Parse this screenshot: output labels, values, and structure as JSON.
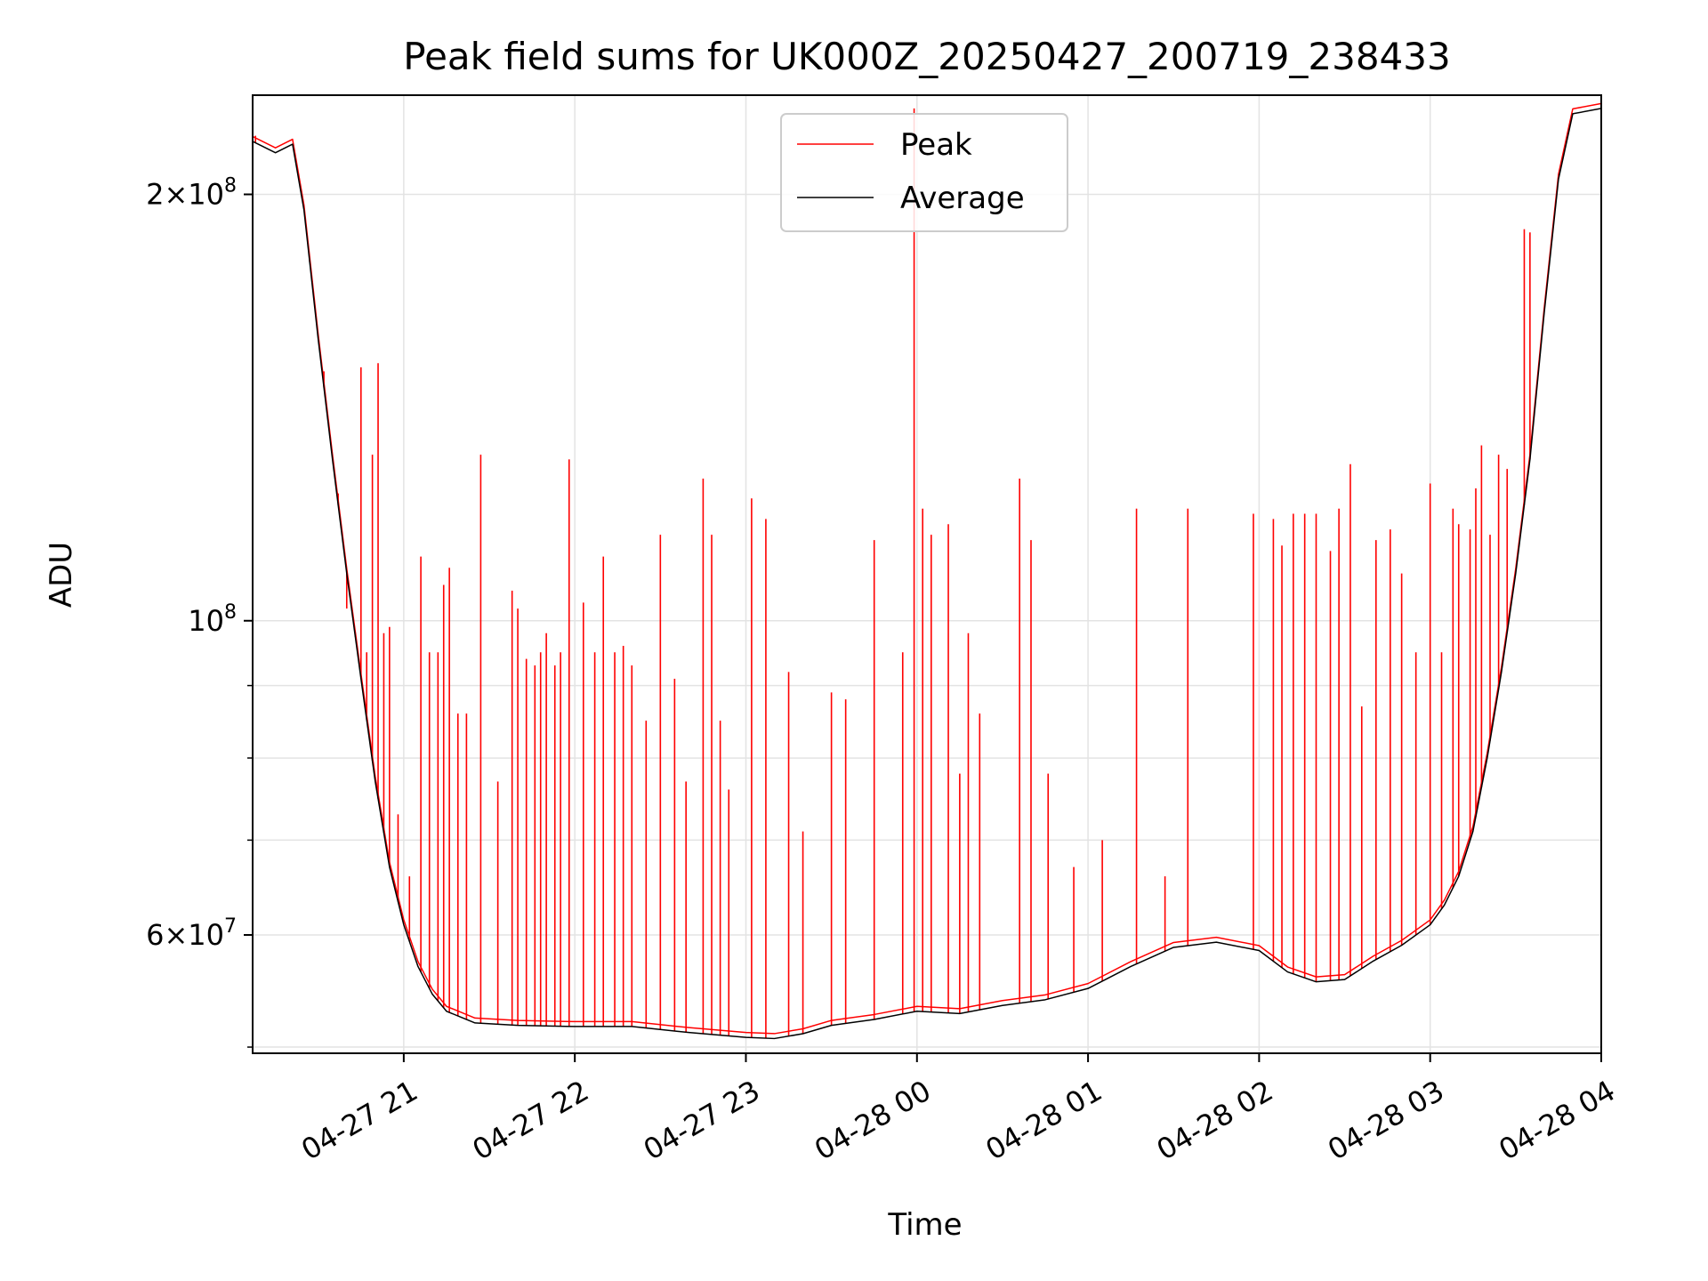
{
  "chart_data": {
    "type": "line",
    "title": "Peak field sums for UK000Z_20250427_200719_238433",
    "xlabel": "Time",
    "ylabel": "ADU",
    "y_scale": "log",
    "grid": true,
    "legend_position": "top-center",
    "x_range": [
      "2025-04-27 20:07",
      "2025-04-28 04:00"
    ],
    "ylim": [
      49500000,
      235000000
    ],
    "x_tick_labels": [
      "04-27 21",
      "04-27 22",
      "04-27 23",
      "04-28 00",
      "04-28 01",
      "04-28 02",
      "04-28 03",
      "04-28 04"
    ],
    "x_tick_times": [
      "2025-04-27 21:00",
      "2025-04-27 22:00",
      "2025-04-27 23:00",
      "2025-04-28 00:00",
      "2025-04-28 01:00",
      "2025-04-28 02:00",
      "2025-04-28 03:00",
      "2025-04-28 04:00"
    ],
    "y_major_ticks": [
      {
        "value": 60000000,
        "mantissa": "6",
        "exponent": "7"
      },
      {
        "value": 100000000,
        "mantissa": "",
        "exponent": "8"
      },
      {
        "value": 200000000,
        "mantissa": "2",
        "exponent": "8"
      }
    ],
    "y_minor_ticks": [
      50000000,
      70000000,
      80000000,
      90000000
    ],
    "series": [
      {
        "name": "Average",
        "color": "#000000",
        "points": [
          [
            "2025-04-27 20:07",
            218000000
          ],
          [
            "2025-04-27 20:15",
            214000000
          ],
          [
            "2025-04-27 20:21",
            217000000
          ],
          [
            "2025-04-27 20:25",
            195000000
          ],
          [
            "2025-04-27 20:30",
            158000000
          ],
          [
            "2025-04-27 20:35",
            130000000
          ],
          [
            "2025-04-27 20:40",
            108000000
          ],
          [
            "2025-04-27 20:45",
            91000000
          ],
          [
            "2025-04-27 20:50",
            77000000
          ],
          [
            "2025-04-27 20:55",
            67000000
          ],
          [
            "2025-04-27 21:00",
            61000000
          ],
          [
            "2025-04-27 21:05",
            57000000
          ],
          [
            "2025-04-27 21:10",
            54500000
          ],
          [
            "2025-04-27 21:15",
            53000000
          ],
          [
            "2025-04-27 21:25",
            52000000
          ],
          [
            "2025-04-27 21:40",
            51800000
          ],
          [
            "2025-04-27 22:00",
            51700000
          ],
          [
            "2025-04-27 22:20",
            51700000
          ],
          [
            "2025-04-27 22:40",
            51200000
          ],
          [
            "2025-04-27 23:00",
            50800000
          ],
          [
            "2025-04-27 23:10",
            50700000
          ],
          [
            "2025-04-27 23:20",
            51100000
          ],
          [
            "2025-04-27 23:30",
            51800000
          ],
          [
            "2025-04-27 23:45",
            52300000
          ],
          [
            "2025-04-28 00:00",
            53000000
          ],
          [
            "2025-04-28 00:15",
            52800000
          ],
          [
            "2025-04-28 00:30",
            53500000
          ],
          [
            "2025-04-28 00:45",
            54000000
          ],
          [
            "2025-04-28 01:00",
            55000000
          ],
          [
            "2025-04-28 01:15",
            57000000
          ],
          [
            "2025-04-28 01:30",
            58800000
          ],
          [
            "2025-04-28 01:45",
            59300000
          ],
          [
            "2025-04-28 02:00",
            58500000
          ],
          [
            "2025-04-28 02:10",
            56500000
          ],
          [
            "2025-04-28 02:20",
            55600000
          ],
          [
            "2025-04-28 02:30",
            55800000
          ],
          [
            "2025-04-28 02:40",
            57500000
          ],
          [
            "2025-04-28 02:50",
            59000000
          ],
          [
            "2025-04-28 03:00",
            61000000
          ],
          [
            "2025-04-28 03:05",
            63000000
          ],
          [
            "2025-04-28 03:10",
            66000000
          ],
          [
            "2025-04-28 03:15",
            71000000
          ],
          [
            "2025-04-28 03:20",
            80000000
          ],
          [
            "2025-04-28 03:25",
            92000000
          ],
          [
            "2025-04-28 03:30",
            108000000
          ],
          [
            "2025-04-28 03:35",
            130000000
          ],
          [
            "2025-04-28 03:40",
            165000000
          ],
          [
            "2025-04-28 03:45",
            205000000
          ],
          [
            "2025-04-28 03:50",
            228000000
          ],
          [
            "2025-04-28 04:00",
            230000000
          ]
        ]
      },
      {
        "name": "Peak",
        "color": "#ff0000",
        "spikes": [
          [
            "2025-04-27 20:08",
            220000000
          ],
          [
            "2025-04-27 20:27",
            180000000
          ],
          [
            "2025-04-27 20:32",
            150000000
          ],
          [
            "2025-04-27 20:37",
            123000000
          ],
          [
            "2025-04-27 20:40",
            102000000
          ],
          [
            "2025-04-27 20:43",
            98000000
          ],
          [
            "2025-04-27 20:45",
            151000000
          ],
          [
            "2025-04-27 20:47",
            95000000
          ],
          [
            "2025-04-27 20:49",
            131000000
          ],
          [
            "2025-04-27 20:51",
            152000000
          ],
          [
            "2025-04-27 20:53",
            98000000
          ],
          [
            "2025-04-27 20:55",
            99000000
          ],
          [
            "2025-04-27 20:58",
            73000000
          ],
          [
            "2025-04-27 21:02",
            66000000
          ],
          [
            "2025-04-27 21:06",
            111000000
          ],
          [
            "2025-04-27 21:09",
            95000000
          ],
          [
            "2025-04-27 21:12",
            95000000
          ],
          [
            "2025-04-27 21:14",
            106000000
          ],
          [
            "2025-04-27 21:16",
            109000000
          ],
          [
            "2025-04-27 21:19",
            86000000
          ],
          [
            "2025-04-27 21:22",
            86000000
          ],
          [
            "2025-04-27 21:27",
            131000000
          ],
          [
            "2025-04-27 21:33",
            77000000
          ],
          [
            "2025-04-27 21:38",
            105000000
          ],
          [
            "2025-04-27 21:40",
            102000000
          ],
          [
            "2025-04-27 21:43",
            94000000
          ],
          [
            "2025-04-27 21:46",
            93000000
          ],
          [
            "2025-04-27 21:48",
            95000000
          ],
          [
            "2025-04-27 21:50",
            98000000
          ],
          [
            "2025-04-27 21:53",
            93000000
          ],
          [
            "2025-04-27 21:55",
            95000000
          ],
          [
            "2025-04-27 21:58",
            130000000
          ],
          [
            "2025-04-27 22:03",
            103000000
          ],
          [
            "2025-04-27 22:07",
            95000000
          ],
          [
            "2025-04-27 22:10",
            111000000
          ],
          [
            "2025-04-27 22:14",
            95000000
          ],
          [
            "2025-04-27 22:17",
            96000000
          ],
          [
            "2025-04-27 22:20",
            93000000
          ],
          [
            "2025-04-27 22:25",
            85000000
          ],
          [
            "2025-04-27 22:30",
            115000000
          ],
          [
            "2025-04-27 22:35",
            91000000
          ],
          [
            "2025-04-27 22:39",
            77000000
          ],
          [
            "2025-04-27 22:45",
            126000000
          ],
          [
            "2025-04-27 22:48",
            115000000
          ],
          [
            "2025-04-27 22:51",
            85000000
          ],
          [
            "2025-04-27 22:54",
            76000000
          ],
          [
            "2025-04-27 23:02",
            122000000
          ],
          [
            "2025-04-27 23:07",
            118000000
          ],
          [
            "2025-04-27 23:15",
            92000000
          ],
          [
            "2025-04-27 23:20",
            71000000
          ],
          [
            "2025-04-27 23:30",
            89000000
          ],
          [
            "2025-04-27 23:35",
            88000000
          ],
          [
            "2025-04-27 23:45",
            114000000
          ],
          [
            "2025-04-27 23:55",
            95000000
          ],
          [
            "2025-04-27 23:59",
            230000000
          ],
          [
            "2025-04-28 00:02",
            120000000
          ],
          [
            "2025-04-28 00:05",
            115000000
          ],
          [
            "2025-04-28 00:11",
            117000000
          ],
          [
            "2025-04-28 00:15",
            78000000
          ],
          [
            "2025-04-28 00:18",
            98000000
          ],
          [
            "2025-04-28 00:22",
            86000000
          ],
          [
            "2025-04-28 00:36",
            126000000
          ],
          [
            "2025-04-28 00:40",
            114000000
          ],
          [
            "2025-04-28 00:46",
            78000000
          ],
          [
            "2025-04-28 00:55",
            67000000
          ],
          [
            "2025-04-28 01:05",
            70000000
          ],
          [
            "2025-04-28 01:17",
            120000000
          ],
          [
            "2025-04-28 01:27",
            66000000
          ],
          [
            "2025-04-28 01:35",
            120000000
          ],
          [
            "2025-04-28 01:58",
            119000000
          ],
          [
            "2025-04-28 02:05",
            118000000
          ],
          [
            "2025-04-28 02:08",
            113000000
          ],
          [
            "2025-04-28 02:12",
            119000000
          ],
          [
            "2025-04-28 02:16",
            119000000
          ],
          [
            "2025-04-28 02:20",
            119000000
          ],
          [
            "2025-04-28 02:25",
            112000000
          ],
          [
            "2025-04-28 02:28",
            120000000
          ],
          [
            "2025-04-28 02:32",
            129000000
          ],
          [
            "2025-04-28 02:36",
            87000000
          ],
          [
            "2025-04-28 02:41",
            114000000
          ],
          [
            "2025-04-28 02:46",
            116000000
          ],
          [
            "2025-04-28 02:50",
            108000000
          ],
          [
            "2025-04-28 02:55",
            95000000
          ],
          [
            "2025-04-28 03:00",
            125000000
          ],
          [
            "2025-04-28 03:04",
            95000000
          ],
          [
            "2025-04-28 03:08",
            120000000
          ],
          [
            "2025-04-28 03:10",
            117000000
          ],
          [
            "2025-04-28 03:14",
            116000000
          ],
          [
            "2025-04-28 03:16",
            124000000
          ],
          [
            "2025-04-28 03:18",
            133000000
          ],
          [
            "2025-04-28 03:21",
            115000000
          ],
          [
            "2025-04-28 03:24",
            131000000
          ],
          [
            "2025-04-28 03:27",
            128000000
          ],
          [
            "2025-04-28 03:33",
            189000000
          ],
          [
            "2025-04-28 03:35",
            188000000
          ]
        ]
      }
    ]
  }
}
